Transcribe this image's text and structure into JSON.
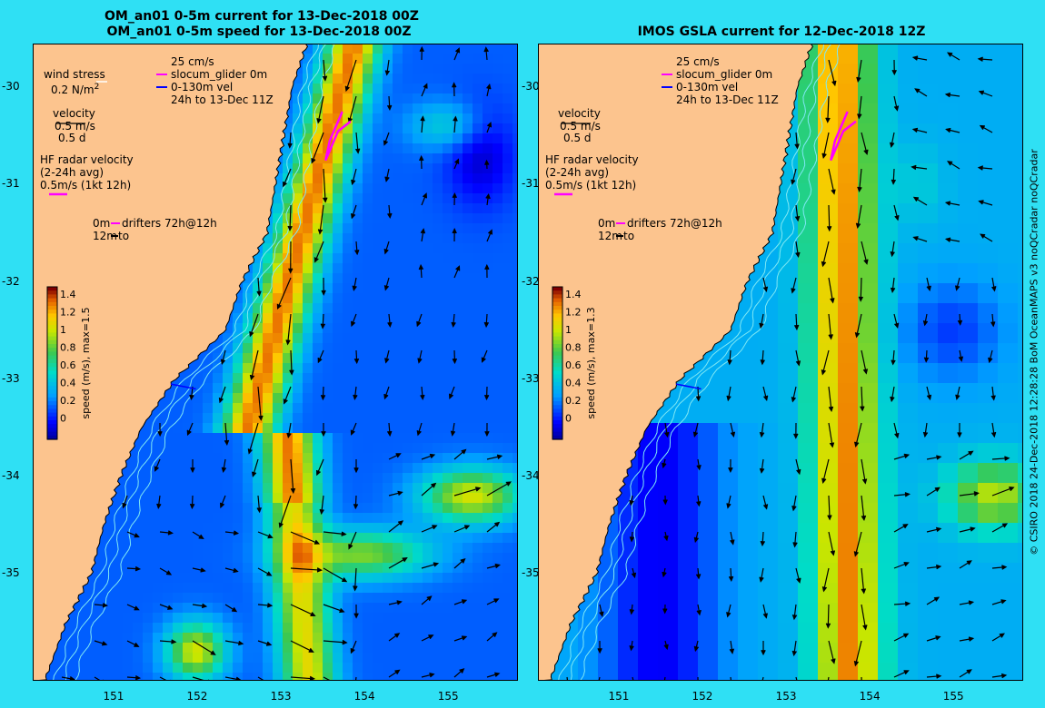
{
  "left_panel": {
    "title_line1": "OM_an01 0-5m current for 13-Dec-2018 00Z",
    "title_line2": "OM_an01 0-5m speed for 13-Dec-2018 00Z",
    "colorbar_label": "speed (m/s), max=1.5",
    "legend": {
      "wind_stress": "wind stress",
      "wind_stress_ref": "0.2 N/m",
      "wind_stress_ref_sup": "2",
      "velocity": "velocity",
      "velocity_ref": "0.5 m/s",
      "velocity_time": "0.5 d",
      "hf_radar_line1": "HF radar velocity",
      "hf_radar_line2": "(2-24h avg)",
      "hf_radar_ref": "0.5m/s (1kt 12h)",
      "drifters_0m": "0m",
      "drifters_label": "drifters 72h@12h",
      "drifters_12m": "12m",
      "drifters_to": "to",
      "glider_scale": "25 cm/s",
      "glider_label": "slocum_glider 0m",
      "glider_depth": "0-130m vel",
      "glider_time": "24h to 13-Dec 11Z"
    }
  },
  "right_panel": {
    "title": "IMOS GSLA current for 12-Dec-2018 12Z",
    "colorbar_label": "speed (m/s), max=1.3",
    "legend": {
      "velocity": "velocity",
      "velocity_ref": "0.5 m/s",
      "velocity_time": "0.5 d",
      "hf_radar_line1": "HF radar velocity",
      "hf_radar_line2": "(2-24h avg)",
      "hf_radar_ref": "0.5m/s (1kt 12h)",
      "drifters_0m": "0m",
      "drifters_label": "drifters 72h@12h",
      "drifters_12m": "12m",
      "drifters_to": "to",
      "glider_scale": "25 cm/s",
      "glider_label": "slocum_glider 0m",
      "glider_depth": "0-130m vel",
      "glider_time": "24h to 13-Dec 11Z"
    }
  },
  "axes": {
    "lat_ticks": [
      "-30",
      "-31",
      "-32",
      "-33",
      "-34",
      "-35"
    ],
    "lon_ticks": [
      "151",
      "152",
      "153",
      "154",
      "155"
    ]
  },
  "colorbar_ticks": [
    "1.4",
    "1.2",
    "1",
    "0.8",
    "0.6",
    "0.4",
    "0.2",
    "0"
  ],
  "colors": {
    "background": "#2fe0f4",
    "land": "#fcc48e",
    "hf_radar": "#ff00ff",
    "wind_stress": "#ffffff",
    "isobath": "#7fe8f4",
    "glider_vel": "#0000ff"
  },
  "credit": "© CSIRO 2018    24-Dec-2018 12:28:28 BoM OceanMAPS v3 noQCradar noQCradar"
}
